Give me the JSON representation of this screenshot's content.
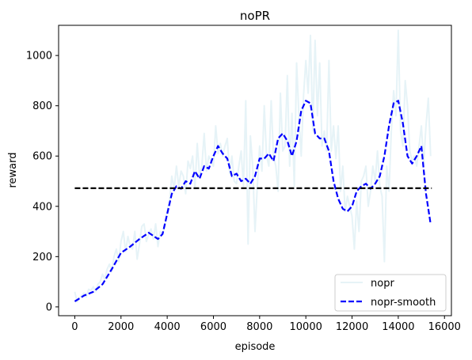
{
  "chart_data": {
    "type": "line",
    "title": "noPR",
    "xlabel": "episode",
    "ylabel": "reward",
    "xlim": [
      -700,
      16300
    ],
    "ylim": [
      -35,
      1120
    ],
    "xticks": [
      0,
      2000,
      4000,
      6000,
      8000,
      10000,
      12000,
      14000,
      16000
    ],
    "yticks": [
      0,
      200,
      400,
      600,
      800,
      1000
    ],
    "legend_position": "bottom-right",
    "grid": false,
    "reference_line": {
      "y": 472,
      "x_range": [
        0,
        15450
      ],
      "color": "#000000",
      "style": "dashed"
    },
    "series": [
      {
        "name": "nopr",
        "color": "#add8e6",
        "opacity": 0.3,
        "style": "solid",
        "x": [
          0,
          100,
          200,
          300,
          400,
          500,
          600,
          700,
          800,
          900,
          1000,
          1100,
          1200,
          1300,
          1400,
          1500,
          1600,
          1700,
          1800,
          1900,
          2000,
          2100,
          2200,
          2300,
          2400,
          2500,
          2600,
          2700,
          2800,
          2900,
          3000,
          3100,
          3200,
          3300,
          3400,
          3500,
          3600,
          3700,
          3800,
          3900,
          4000,
          4100,
          4200,
          4300,
          4400,
          4500,
          4600,
          4700,
          4800,
          4900,
          5000,
          5100,
          5200,
          5300,
          5400,
          5500,
          5600,
          5700,
          5800,
          5900,
          6000,
          6100,
          6200,
          6300,
          6400,
          6500,
          6600,
          6700,
          6800,
          6900,
          7000,
          7100,
          7200,
          7300,
          7400,
          7500,
          7600,
          7700,
          7800,
          7900,
          8000,
          8100,
          8200,
          8300,
          8400,
          8500,
          8600,
          8700,
          8800,
          8900,
          9000,
          9100,
          9200,
          9300,
          9400,
          9500,
          9600,
          9700,
          9800,
          9900,
          10000,
          10100,
          10200,
          10300,
          10400,
          10500,
          10600,
          10700,
          10800,
          10900,
          11000,
          11100,
          11200,
          11300,
          11400,
          11500,
          11600,
          11700,
          11800,
          11900,
          12000,
          12100,
          12200,
          12300,
          12400,
          12500,
          12600,
          12700,
          12800,
          12900,
          13000,
          13100,
          13200,
          13300,
          13400,
          13500,
          13600,
          13700,
          13800,
          13900,
          14000,
          14100,
          14200,
          14300,
          14400,
          14500,
          14600,
          14700,
          14800,
          14900,
          15000,
          15100,
          15200,
          15300,
          15400
        ],
        "values": [
          60,
          20,
          35,
          45,
          55,
          40,
          70,
          65,
          80,
          60,
          90,
          100,
          130,
          110,
          150,
          170,
          140,
          200,
          230,
          180,
          260,
          300,
          220,
          280,
          240,
          230,
          300,
          190,
          250,
          320,
          330,
          260,
          290,
          310,
          270,
          330,
          240,
          300,
          290,
          320,
          380,
          420,
          520,
          470,
          560,
          480,
          540,
          520,
          450,
          580,
          550,
          600,
          470,
          650,
          520,
          560,
          690,
          540,
          600,
          580,
          560,
          720,
          610,
          650,
          600,
          640,
          670,
          530,
          600,
          500,
          490,
          560,
          620,
          480,
          820,
          250,
          680,
          560,
          300,
          480,
          640,
          540,
          800,
          600,
          560,
          820,
          600,
          560,
          460,
          850,
          620,
          640,
          920,
          560,
          770,
          480,
          970,
          760,
          600,
          840,
          980,
          850,
          1080,
          700,
          1060,
          760,
          970,
          640,
          700,
          620,
          980,
          620,
          720,
          590,
          720,
          460,
          560,
          380,
          440,
          400,
          360,
          230,
          420,
          300,
          500,
          520,
          560,
          400,
          460,
          560,
          500,
          620,
          480,
          440,
          180,
          560,
          460,
          700,
          860,
          760,
          1100,
          700,
          640,
          900,
          800,
          620,
          580,
          600,
          560,
          640,
          720,
          570,
          720,
          830,
          600
        ]
      },
      {
        "name": "nopr-smooth",
        "color": "#0000ff",
        "style": "dashed",
        "x": [
          0,
          400,
          800,
          1200,
          1600,
          2000,
          2400,
          2800,
          3200,
          3600,
          3800,
          4000,
          4200,
          4400,
          4600,
          4800,
          5000,
          5200,
          5400,
          5600,
          5800,
          6000,
          6200,
          6400,
          6600,
          6800,
          7000,
          7200,
          7400,
          7600,
          7800,
          8000,
          8200,
          8400,
          8600,
          8800,
          9000,
          9200,
          9400,
          9600,
          9800,
          10000,
          10200,
          10400,
          10600,
          10800,
          11000,
          11200,
          11400,
          11600,
          11800,
          12000,
          12200,
          12400,
          12600,
          12800,
          13000,
          13200,
          13400,
          13600,
          13800,
          14000,
          14200,
          14400,
          14600,
          14800,
          15000,
          15200,
          15400
        ],
        "values": [
          22,
          45,
          60,
          90,
          150,
          215,
          240,
          270,
          295,
          270,
          290,
          370,
          450,
          480,
          470,
          500,
          490,
          540,
          510,
          560,
          550,
          600,
          640,
          610,
          590,
          520,
          530,
          500,
          510,
          490,
          520,
          590,
          590,
          610,
          580,
          670,
          690,
          660,
          600,
          660,
          780,
          820,
          810,
          690,
          670,
          670,
          620,
          500,
          430,
          390,
          380,
          400,
          460,
          480,
          490,
          470,
          490,
          520,
          600,
          720,
          810,
          820,
          730,
          600,
          570,
          600,
          640,
          450,
          330
        ]
      }
    ]
  }
}
